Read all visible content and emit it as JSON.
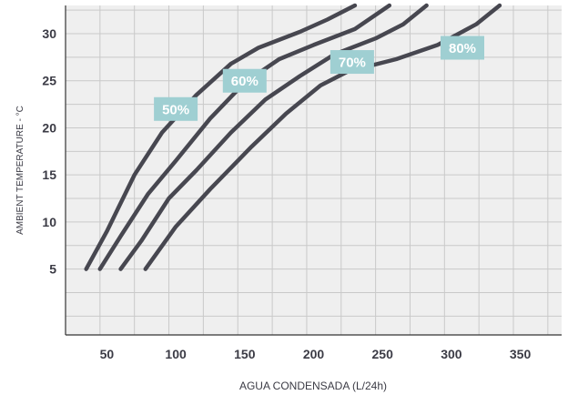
{
  "chart_data": {
    "type": "line",
    "xlabel": "AGUA CONDENSADA (L/24h)",
    "ylabel": "AMBIENT TEMPERATURE - °C",
    "xlim": [
      20,
      380
    ],
    "ylim": [
      -2,
      33
    ],
    "x_ticks": [
      50,
      100,
      150,
      200,
      250,
      300,
      350
    ],
    "y_ticks": [
      5,
      10,
      15,
      20,
      25,
      30
    ],
    "x_tick_labels": [
      "50",
      "100",
      "150",
      "200",
      "250",
      "300",
      "350"
    ],
    "y_tick_labels": [
      "5",
      "10",
      "15",
      "20",
      "25",
      "30"
    ],
    "grid": true,
    "series": [
      {
        "name": "50%",
        "points": [
          [
            35,
            5
          ],
          [
            50,
            9
          ],
          [
            70,
            15
          ],
          [
            90,
            19.5
          ],
          [
            115,
            23.5
          ],
          [
            140,
            26.8
          ],
          [
            160,
            28.5
          ],
          [
            190,
            30.2
          ],
          [
            210,
            31.5
          ],
          [
            230,
            33
          ]
        ]
      },
      {
        "name": "60%",
        "points": [
          [
            45,
            5
          ],
          [
            60,
            8.5
          ],
          [
            80,
            13
          ],
          [
            100,
            16.5
          ],
          [
            125,
            21
          ],
          [
            150,
            24.8
          ],
          [
            175,
            27.3
          ],
          [
            200,
            28.8
          ],
          [
            230,
            30.5
          ],
          [
            255,
            33
          ]
        ]
      },
      {
        "name": "70%",
        "points": [
          [
            60,
            5
          ],
          [
            75,
            8
          ],
          [
            95,
            12.5
          ],
          [
            115,
            15.5
          ],
          [
            140,
            19.5
          ],
          [
            165,
            23
          ],
          [
            190,
            25.5
          ],
          [
            215,
            27.8
          ],
          [
            245,
            29.5
          ],
          [
            265,
            31
          ],
          [
            282,
            33
          ]
        ]
      },
      {
        "name": "80%",
        "points": [
          [
            78,
            5
          ],
          [
            100,
            9.5
          ],
          [
            125,
            13.5
          ],
          [
            155,
            18
          ],
          [
            180,
            21.5
          ],
          [
            205,
            24.5
          ],
          [
            225,
            26
          ],
          [
            260,
            27.3
          ],
          [
            290,
            28.8
          ],
          [
            318,
            31
          ],
          [
            335,
            33
          ]
        ]
      }
    ],
    "labels": [
      {
        "text": "50%",
        "x": 100,
        "y": 22
      },
      {
        "text": "60%",
        "x": 150,
        "y": 25
      },
      {
        "text": "70%",
        "x": 228,
        "y": 27
      },
      {
        "text": "80%",
        "x": 308,
        "y": 28.5
      }
    ],
    "colors": {
      "line": "#474750",
      "badge": "#9fcfd2",
      "grid": "#c9c9c9",
      "background": "#efefef"
    }
  }
}
